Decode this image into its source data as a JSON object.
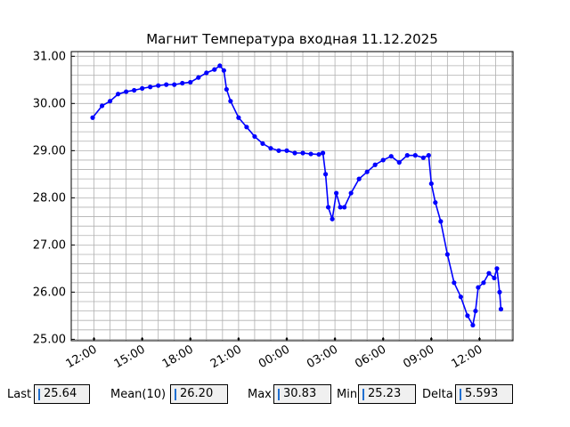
{
  "chart_data": {
    "type": "line",
    "title": "Магнит Температура входная 11.12.2025",
    "xlabel": "",
    "ylabel": "",
    "ylim": [
      24.97,
      31.1
    ],
    "xlim": [
      "2025-12-11T10:35",
      "2025-12-12T14:05"
    ],
    "x_ticks": [
      "12:00",
      "15:00",
      "18:00",
      "21:00",
      "00:00",
      "03:00",
      "06:00",
      "09:00",
      "12:00"
    ],
    "y_ticks": [
      "25.00",
      "26.00",
      "27.00",
      "28.00",
      "29.00",
      "30.00",
      "31.00"
    ],
    "grid": true,
    "series": [
      {
        "color": "#0000ff",
        "marker": "circle",
        "points": [
          [
            "2025-12-11T11:55",
            29.7
          ],
          [
            "2025-12-11T12:30",
            29.95
          ],
          [
            "2025-12-11T13:00",
            30.05
          ],
          [
            "2025-12-11T13:30",
            30.2
          ],
          [
            "2025-12-11T14:00",
            30.25
          ],
          [
            "2025-12-11T14:30",
            30.28
          ],
          [
            "2025-12-11T15:00",
            30.32
          ],
          [
            "2025-12-11T15:30",
            30.35
          ],
          [
            "2025-12-11T16:00",
            30.38
          ],
          [
            "2025-12-11T16:30",
            30.4
          ],
          [
            "2025-12-11T17:00",
            30.4
          ],
          [
            "2025-12-11T17:30",
            30.43
          ],
          [
            "2025-12-11T18:00",
            30.45
          ],
          [
            "2025-12-11T18:30",
            30.55
          ],
          [
            "2025-12-11T19:00",
            30.65
          ],
          [
            "2025-12-11T19:30",
            30.72
          ],
          [
            "2025-12-11T19:50",
            30.8
          ],
          [
            "2025-12-11T20:05",
            30.7
          ],
          [
            "2025-12-11T20:15",
            30.3
          ],
          [
            "2025-12-11T20:30",
            30.05
          ],
          [
            "2025-12-11T21:00",
            29.7
          ],
          [
            "2025-12-11T21:30",
            29.5
          ],
          [
            "2025-12-11T22:00",
            29.3
          ],
          [
            "2025-12-11T22:30",
            29.15
          ],
          [
            "2025-12-11T23:00",
            29.05
          ],
          [
            "2025-12-11T23:30",
            29.0
          ],
          [
            "2025-12-12T00:00",
            29.0
          ],
          [
            "2025-12-12T00:30",
            28.95
          ],
          [
            "2025-12-12T01:00",
            28.95
          ],
          [
            "2025-12-12T01:30",
            28.93
          ],
          [
            "2025-12-12T02:00",
            28.92
          ],
          [
            "2025-12-12T02:15",
            28.95
          ],
          [
            "2025-12-12T02:25",
            28.5
          ],
          [
            "2025-12-12T02:35",
            27.8
          ],
          [
            "2025-12-12T02:50",
            27.55
          ],
          [
            "2025-12-12T03:05",
            28.1
          ],
          [
            "2025-12-12T03:20",
            27.8
          ],
          [
            "2025-12-12T03:35",
            27.8
          ],
          [
            "2025-12-12T04:00",
            28.1
          ],
          [
            "2025-12-12T04:30",
            28.4
          ],
          [
            "2025-12-12T05:00",
            28.55
          ],
          [
            "2025-12-12T05:30",
            28.7
          ],
          [
            "2025-12-12T06:00",
            28.8
          ],
          [
            "2025-12-12T06:30",
            28.88
          ],
          [
            "2025-12-12T07:00",
            28.75
          ],
          [
            "2025-12-12T07:30",
            28.9
          ],
          [
            "2025-12-12T08:00",
            28.9
          ],
          [
            "2025-12-12T08:30",
            28.85
          ],
          [
            "2025-12-12T08:50",
            28.9
          ],
          [
            "2025-12-12T09:00",
            28.3
          ],
          [
            "2025-12-12T09:15",
            27.9
          ],
          [
            "2025-12-12T09:35",
            27.5
          ],
          [
            "2025-12-12T10:00",
            26.8
          ],
          [
            "2025-12-12T10:25",
            26.2
          ],
          [
            "2025-12-12T10:50",
            25.9
          ],
          [
            "2025-12-12T11:15",
            25.5
          ],
          [
            "2025-12-12T11:35",
            25.3
          ],
          [
            "2025-12-12T11:45",
            25.6
          ],
          [
            "2025-12-12T11:55",
            26.1
          ],
          [
            "2025-12-12T12:15",
            26.2
          ],
          [
            "2025-12-12T12:35",
            26.4
          ],
          [
            "2025-12-12T12:55",
            26.3
          ],
          [
            "2025-12-12T13:05",
            26.5
          ],
          [
            "2025-12-12T13:15",
            26.0
          ],
          [
            "2025-12-12T13:20",
            25.64
          ]
        ]
      }
    ]
  },
  "stats": {
    "last_label": "Last",
    "last_value": "25.64",
    "mean_label": "Mean(10)",
    "mean_value": "26.20",
    "max_label": "Max",
    "max_value": "30.83",
    "min_label": "Min",
    "min_value": "25.23",
    "delta_label": "Delta",
    "delta_value": "5.593"
  }
}
